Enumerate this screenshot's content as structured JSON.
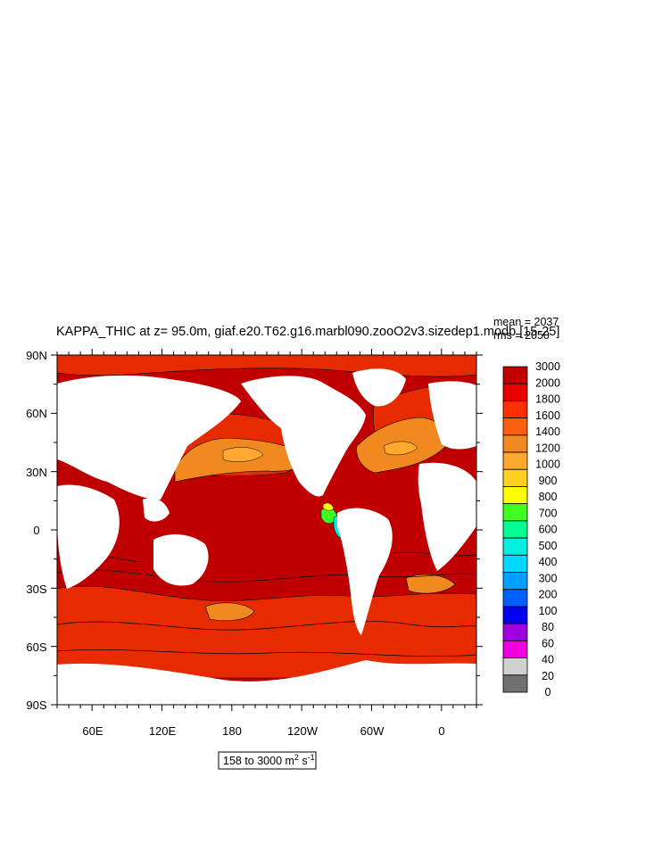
{
  "title": "KAPPA_THIC at z=  95.0m, giaf.e20.T62.g16.marbl090.zooO2v3.sizedep1.modb [15-25]",
  "stats": {
    "mean": "mean = 2037",
    "rms": "rms = 2050"
  },
  "range_label": {
    "text": "158 to 3000 m",
    "sup1": "2",
    "mid": " s",
    "sup2": "-1"
  },
  "lat_labels": [
    "90N",
    "60N",
    "30N",
    "0",
    "30S",
    "60S",
    "90S"
  ],
  "lon_labels": [
    "60E",
    "120E",
    "180",
    "120W",
    "60W",
    "0"
  ],
  "colorbar": {
    "labels": [
      "3000",
      "2000",
      "1800",
      "1600",
      "1400",
      "1200",
      "1000",
      "900",
      "800",
      "700",
      "600",
      "500",
      "400",
      "300",
      "200",
      "100",
      "80",
      "60",
      "40",
      "20",
      "0"
    ],
    "colors": [
      "#c00000",
      "#e80000",
      "#ff3000",
      "#ff6010",
      "#f08a20",
      "#ffa830",
      "#ffd020",
      "#ffff00",
      "#40ff20",
      "#00ff90",
      "#00f0e0",
      "#00d8ff",
      "#00a0ff",
      "#0060ff",
      "#0000f0",
      "#a000e0",
      "#f000e0",
      "#d0d0d0",
      "#707070"
    ]
  },
  "map_colors": {
    "ocean": "#c00000",
    "land": "#ffffff",
    "warm": "#e82a00",
    "orange": "#f08a20",
    "amber": "#ffa830",
    "contour": "#000000"
  }
}
